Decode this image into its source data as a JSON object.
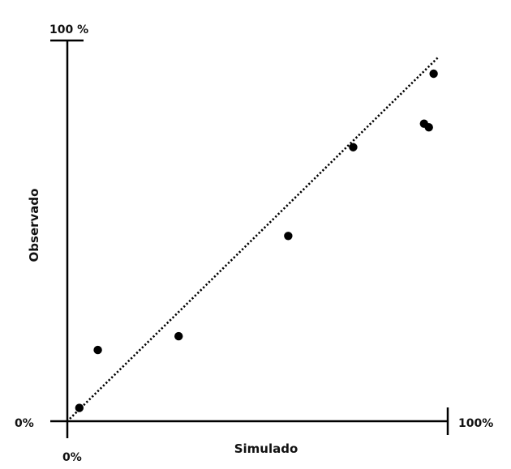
{
  "chart_data": {
    "type": "scatter",
    "title": "",
    "xlabel": "Simulado",
    "ylabel": "Observado",
    "xlim": [
      0,
      100
    ],
    "ylim": [
      0,
      100
    ],
    "x_ticks": {
      "min": "0%",
      "max": "100%"
    },
    "y_ticks": {
      "min": "0%",
      "max": "100 %"
    },
    "grid": false,
    "legend": "none",
    "reference_line": {
      "style": "dotted",
      "from": [
        0,
        0
      ],
      "to": [
        100,
        100
      ]
    },
    "colors": {
      "point": "#000000",
      "axis": "#000000",
      "reference_line": "#000000"
    },
    "points": [
      {
        "x": 2.6,
        "y": 3.0
      },
      {
        "x": 7.6,
        "y": 19.0
      },
      {
        "x": 29.5,
        "y": 22.8
      },
      {
        "x": 59.2,
        "y": 50.5
      },
      {
        "x": 76.8,
        "y": 75.0
      },
      {
        "x": 96.0,
        "y": 81.5
      },
      {
        "x": 97.3,
        "y": 80.5
      },
      {
        "x": 98.6,
        "y": 95.3
      }
    ]
  }
}
